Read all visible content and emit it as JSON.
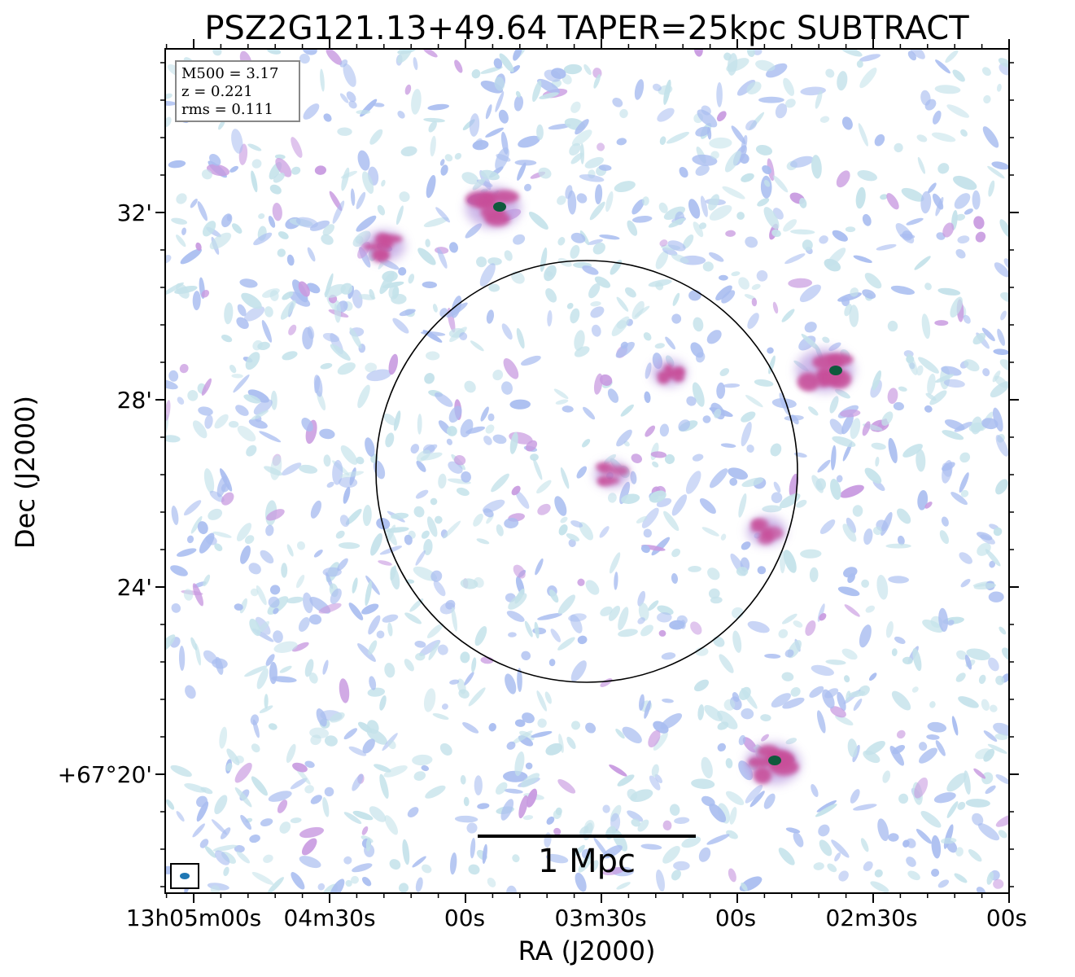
{
  "chart_data": {
    "type": "heatmap",
    "title": "PSZ2G121.13+49.64 TAPER=25kpc SUBTRACT",
    "xlabel": "RA (J2000)",
    "ylabel": "Dec (J2000)",
    "x_ticks": [
      "13h05m00s",
      "04m30s",
      "00s",
      "03m30s",
      "00s",
      "02m30s",
      "00s"
    ],
    "y_ticks": [
      "32'",
      "28'",
      "24'",
      "+67°20'"
    ],
    "info_box": [
      "M500 = 3.17",
      "z = 0.221",
      "rms = 0.111"
    ],
    "scale_bar_label": "1 Mpc",
    "colors": {
      "noise_light": "#c4e2ea",
      "noise_mid": "#a9bdf0",
      "emission": "#c8509a",
      "peak": "#0e5a3c",
      "circle": "#000000",
      "beam": "#1f77b4"
    },
    "sources": [
      {
        "name": "north",
        "intensity": "peak"
      },
      {
        "name": "northwest",
        "intensity": "high"
      },
      {
        "name": "east",
        "intensity": "peak"
      },
      {
        "name": "inner-east",
        "intensity": "high"
      },
      {
        "name": "center",
        "intensity": "medium"
      },
      {
        "name": "circle-edge",
        "intensity": "medium"
      },
      {
        "name": "southeast",
        "intensity": "peak"
      }
    ]
  }
}
